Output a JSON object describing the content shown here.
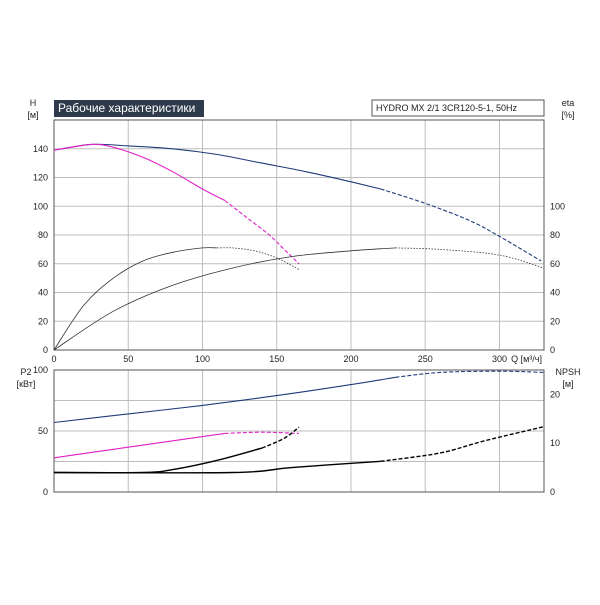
{
  "title": "Рабочие характеристики",
  "model": "HYDRO MX 2/1 3CR120-5-1, 50Hz",
  "colors": {
    "single": "#1f3a7a",
    "system": "#e020c8",
    "grid": "#bdbdbd",
    "eff": "#333333",
    "npsh": "#000000",
    "banner": "#2f3b4c"
  },
  "chart_data": [
    {
      "type": "line",
      "title": "Рабочие характеристики",
      "x_axis": {
        "label": "Q [м³/ч]",
        "range": [
          0,
          330
        ],
        "ticks": [
          0,
          50,
          100,
          150,
          200,
          250,
          300
        ]
      },
      "y_left": {
        "label_top": "H",
        "label_unit": "[м]",
        "range": [
          0,
          160
        ],
        "ticks": [
          0,
          20,
          40,
          60,
          80,
          100,
          120,
          140
        ]
      },
      "y_right": {
        "label_top": "eta",
        "label_unit": "[%]",
        "range": [
          0,
          160
        ],
        "ticks": [
          0,
          20,
          40,
          60,
          80,
          100
        ]
      },
      "grid": true,
      "series": [
        {
          "axis": "left",
          "color_key": "single",
          "dashed_from": 220,
          "x": [
            0,
            25,
            50,
            80,
            110,
            140,
            170,
            200,
            220,
            250,
            280,
            300,
            328
          ],
          "y": [
            139,
            143,
            142,
            140,
            136,
            130,
            124,
            117,
            112,
            102,
            90,
            79,
            62
          ]
        },
        {
          "axis": "left",
          "color_key": "system",
          "dashed_from": 115,
          "x": [
            0,
            25,
            40,
            60,
            80,
            100,
            115,
            130,
            145,
            155,
            165
          ],
          "y": [
            139,
            143,
            141,
            134,
            124,
            112,
            104,
            92,
            80,
            70,
            60
          ]
        },
        {
          "axis": "right",
          "color_key": "eff",
          "dashed_from": 110,
          "x": [
            0,
            20,
            40,
            60,
            80,
            100,
            110,
            120,
            135,
            150,
            165
          ],
          "y": [
            0,
            31,
            50,
            62,
            68,
            71,
            71,
            71,
            69,
            64,
            56
          ]
        },
        {
          "axis": "right",
          "color_key": "eff",
          "dashed_from": 230,
          "x": [
            0,
            40,
            80,
            120,
            160,
            200,
            230,
            260,
            300,
            330
          ],
          "y": [
            0,
            27,
            45,
            57,
            65,
            69,
            71,
            70,
            66,
            57
          ]
        }
      ]
    },
    {
      "type": "line",
      "x_axis": {
        "range": [
          0,
          330
        ]
      },
      "y_left": {
        "label_top": "P2",
        "label_unit": "[кВт]",
        "range": [
          0,
          100
        ],
        "ticks": [
          0,
          50,
          100
        ]
      },
      "y_right": {
        "label_top": "NPSH",
        "label_unit": "[м]",
        "range": [
          0,
          25
        ],
        "ticks": [
          0,
          10,
          20
        ]
      },
      "grid": true,
      "series": [
        {
          "axis": "left",
          "color_key": "single",
          "dashed_from": 230,
          "x": [
            0,
            50,
            100,
            150,
            200,
            230,
            260,
            300,
            330
          ],
          "y": [
            57,
            64,
            71,
            79,
            88,
            94,
            98,
            99,
            98
          ]
        },
        {
          "axis": "left",
          "color_key": "system",
          "dashed_from": 115,
          "x": [
            0,
            40,
            80,
            115,
            140,
            165
          ],
          "y": [
            28,
            35,
            42,
            48,
            49,
            48
          ]
        },
        {
          "axis": "right",
          "color_key": "npsh",
          "dashed_from": 140,
          "x": [
            0,
            60,
            80,
            110,
            140,
            155,
            165
          ],
          "y": [
            4,
            4,
            4.6,
            6.5,
            9,
            11,
            13.3
          ]
        },
        {
          "axis": "right",
          "color_key": "npsh",
          "dashed_from": 220,
          "x": [
            0,
            120,
            160,
            220,
            260,
            290,
            330
          ],
          "y": [
            4,
            4,
            5,
            6.3,
            8,
            10.5,
            13.4
          ]
        }
      ]
    }
  ]
}
